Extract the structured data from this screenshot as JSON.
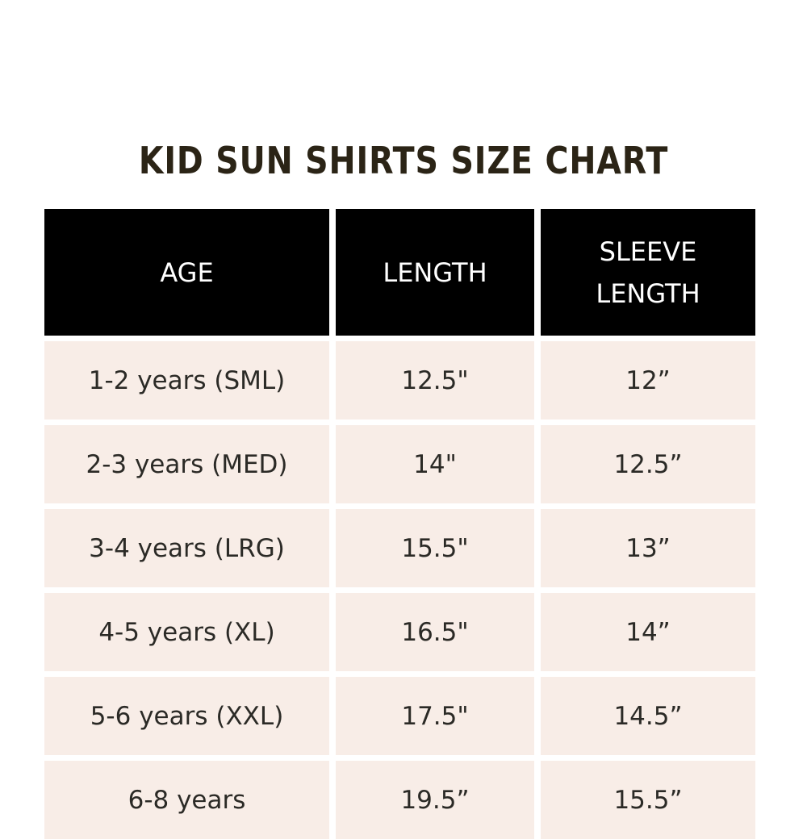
{
  "title": "KID SUN SHIRTS SIZE CHART",
  "table": {
    "header": [
      "AGE",
      "LENGTH",
      "SLEEVE LENGTH"
    ],
    "rows": [
      [
        "1-2 years (SML)",
        "12.5\"",
        "12”"
      ],
      [
        "2-3 years (MED)",
        "14\"",
        "12.5”"
      ],
      [
        "3-4 years (LRG)",
        "15.5\"",
        "13”"
      ],
      [
        "4-5 years (XL)",
        "16.5\"",
        "14”"
      ],
      [
        "5-6 years (XXL)",
        "17.5\"",
        "14.5”"
      ],
      [
        "6-8 years",
        "19.5”",
        "15.5”"
      ]
    ]
  }
}
